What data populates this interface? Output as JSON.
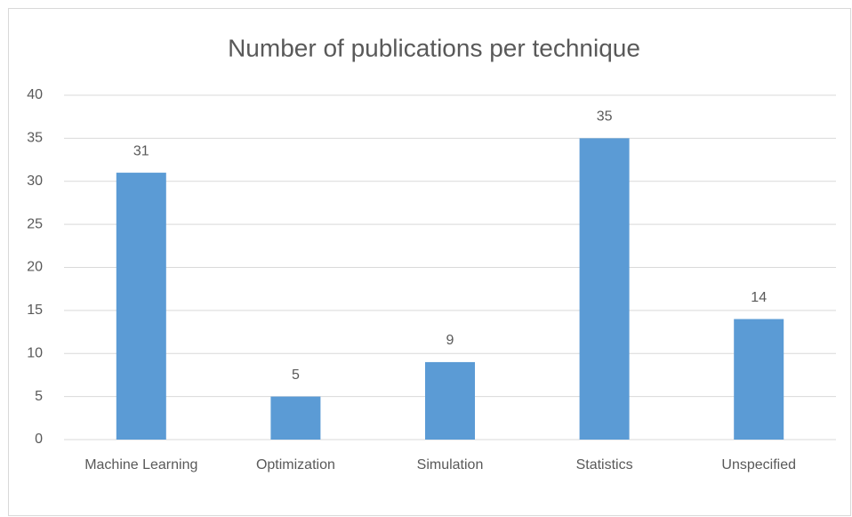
{
  "chart_data": {
    "type": "bar",
    "title": "Number of publications per technique",
    "categories": [
      "Machine Learning",
      "Optimization",
      "Simulation",
      "Statistics",
      "Unspecified"
    ],
    "values": [
      31,
      5,
      9,
      35,
      14
    ],
    "color": "#5b9bd5",
    "ylim": [
      0,
      40
    ],
    "yticks": [
      0,
      5,
      10,
      15,
      20,
      25,
      30,
      35,
      40
    ],
    "grid": true,
    "data_labels": true
  }
}
